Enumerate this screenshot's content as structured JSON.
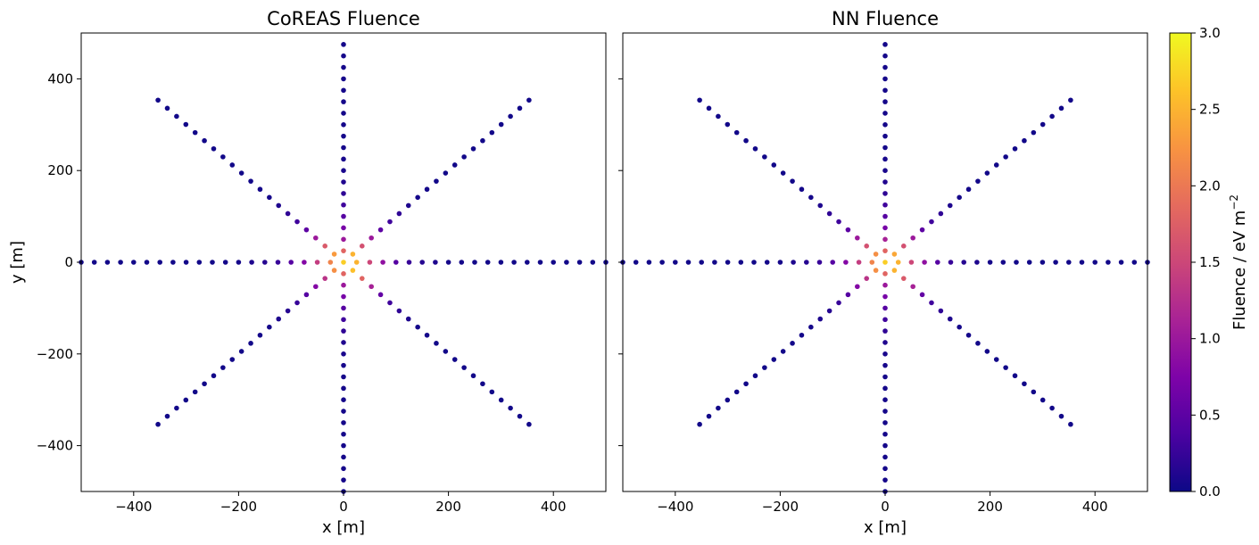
{
  "chart_data": [
    {
      "type": "scatter",
      "title": "CoREAS Fluence",
      "xlabel": "x [m]",
      "ylabel": "y [m]",
      "xlim": [
        -500,
        500
      ],
      "ylim": [
        -500,
        500
      ],
      "xticks": [
        "−400",
        "−200",
        "0",
        "200",
        "400"
      ],
      "yticks": [
        "−400",
        "−200",
        "0",
        "200",
        "400"
      ],
      "xtick_values": [
        -400,
        -200,
        0,
        200,
        400
      ],
      "ytick_values": [
        -400,
        -200,
        0,
        200,
        400
      ],
      "grid": false,
      "layout": "8 radial arms of observer positions (0, 45, 90, 135, 180, 225, 270, 315 degrees), 25 m spacing",
      "arms_deg": [
        0,
        45,
        90,
        135,
        180,
        225,
        270,
        315
      ],
      "arm_max_radius": [
        500,
        500,
        475,
        500,
        500,
        500,
        500,
        500
      ],
      "radius_step": 25,
      "colormap": "plasma",
      "fluence_vs_radius": {
        "radius": [
          25,
          50,
          75,
          100,
          125,
          150,
          175,
          200,
          250
        ],
        "arm_0": [
          2.5,
          1.5,
          0.9,
          0.45,
          0.25,
          0.15,
          0.1,
          0.05,
          0.03
        ],
        "arm_45": [
          2.5,
          1.6,
          1.0,
          0.5,
          0.3,
          0.2,
          0.1,
          0.05,
          0.03
        ],
        "arm_90": [
          1.8,
          1.0,
          0.7,
          0.45,
          0.3,
          0.2,
          0.12,
          0.08,
          0.05
        ],
        "arm_135": [
          2.3,
          1.7,
          1.0,
          0.5,
          0.3,
          0.2,
          0.1,
          0.05,
          0.03
        ],
        "arm_180": [
          2.1,
          1.4,
          0.8,
          0.45,
          0.25,
          0.15,
          0.1,
          0.05,
          0.03
        ],
        "arm_225": [
          2.2,
          1.3,
          0.8,
          0.45,
          0.25,
          0.15,
          0.1,
          0.05,
          0.03
        ],
        "arm_270": [
          1.8,
          1.0,
          0.7,
          0.45,
          0.3,
          0.2,
          0.12,
          0.08,
          0.05
        ],
        "arm_315": [
          2.6,
          1.8,
          1.1,
          0.55,
          0.3,
          0.2,
          0.1,
          0.05,
          0.03
        ]
      }
    },
    {
      "type": "scatter",
      "title": "NN Fluence",
      "xlabel": "x [m]",
      "ylabel": "",
      "xlim": [
        -500,
        500
      ],
      "ylim": [
        -500,
        500
      ],
      "xticks": [
        "−400",
        "−200",
        "0",
        "200",
        "400"
      ],
      "xtick_values": [
        -400,
        -200,
        0,
        200,
        400
      ],
      "ytick_values": [
        -400,
        -200,
        0,
        200,
        400
      ],
      "grid": false,
      "arms_deg": [
        0,
        45,
        90,
        135,
        180,
        225,
        270,
        315
      ],
      "arm_max_radius": [
        500,
        500,
        475,
        500,
        500,
        500,
        500,
        500
      ],
      "radius_step": 25,
      "colormap": "plasma",
      "fluence_vs_radius": {
        "radius": [
          25,
          50,
          75,
          100,
          125,
          150,
          175,
          200,
          250
        ],
        "arm_0": [
          2.5,
          1.5,
          0.9,
          0.45,
          0.25,
          0.15,
          0.1,
          0.05,
          0.03
        ],
        "arm_45": [
          2.4,
          1.6,
          1.0,
          0.5,
          0.3,
          0.2,
          0.1,
          0.05,
          0.03
        ],
        "arm_90": [
          1.8,
          1.1,
          0.7,
          0.45,
          0.3,
          0.2,
          0.12,
          0.08,
          0.05
        ],
        "arm_135": [
          2.2,
          1.6,
          1.0,
          0.5,
          0.3,
          0.2,
          0.1,
          0.05,
          0.03
        ],
        "arm_180": [
          2.1,
          1.4,
          0.8,
          0.45,
          0.25,
          0.15,
          0.1,
          0.05,
          0.03
        ],
        "arm_225": [
          2.2,
          1.3,
          0.8,
          0.45,
          0.25,
          0.15,
          0.1,
          0.05,
          0.03
        ],
        "arm_270": [
          1.8,
          1.0,
          0.7,
          0.45,
          0.3,
          0.2,
          0.12,
          0.08,
          0.05
        ],
        "arm_315": [
          2.5,
          1.7,
          1.1,
          0.55,
          0.3,
          0.2,
          0.1,
          0.05,
          0.03
        ]
      }
    }
  ],
  "colorbar": {
    "label": "Fluence / eV m",
    "label_sup": "−2",
    "range": [
      0.0,
      3.0
    ],
    "ticks": [
      "0.0",
      "0.5",
      "1.0",
      "1.5",
      "2.0",
      "2.5",
      "3.0"
    ],
    "tick_values": [
      0.0,
      0.5,
      1.0,
      1.5,
      2.0,
      2.5,
      3.0
    ],
    "colormap": "plasma"
  }
}
